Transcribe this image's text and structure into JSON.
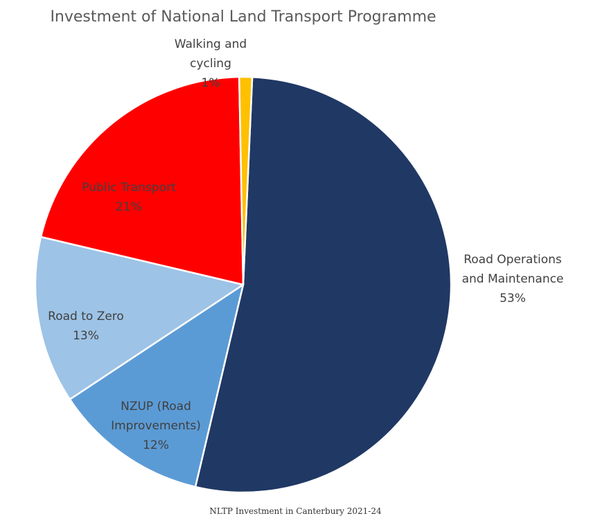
{
  "chart_data": {
    "type": "pie",
    "title": "Investment of National Land Transport Programme",
    "categories": [
      "Road Operations and Maintenance",
      "NZUP (Road Improvements)",
      "Road to Zero",
      "Public Transport",
      "Walking and cycling"
    ],
    "values": [
      53,
      12,
      13,
      21,
      1
    ],
    "unit": "%",
    "slices": [
      {
        "name": "Road Operations and Maintenance",
        "value": 53,
        "color": "#203864",
        "label_lines": [
          "Road Operations",
          "and Maintenance"
        ],
        "pct_label": "53%"
      },
      {
        "name": "NZUP (Road Improvements)",
        "value": 12,
        "color": "#5B9BD5",
        "label_lines": [
          "NZUP (Road",
          "Improvements)"
        ],
        "pct_label": "12%"
      },
      {
        "name": "Road to Zero",
        "value": 13,
        "color": "#9DC3E6",
        "label_lines": [
          "Road to Zero"
        ],
        "pct_label": "13%"
      },
      {
        "name": "Public Transport",
        "value": 21,
        "color": "#FF0000",
        "label_lines": [
          "Public Transport"
        ],
        "pct_label": "21%"
      },
      {
        "name": "Walking and cycling",
        "value": 1,
        "color": "#FFC000",
        "label_lines": [
          "Walking and",
          "cycling"
        ],
        "pct_label": "1%"
      }
    ],
    "legend": "none"
  },
  "caption": "NLTP Investment in Canterbury 2021-24"
}
